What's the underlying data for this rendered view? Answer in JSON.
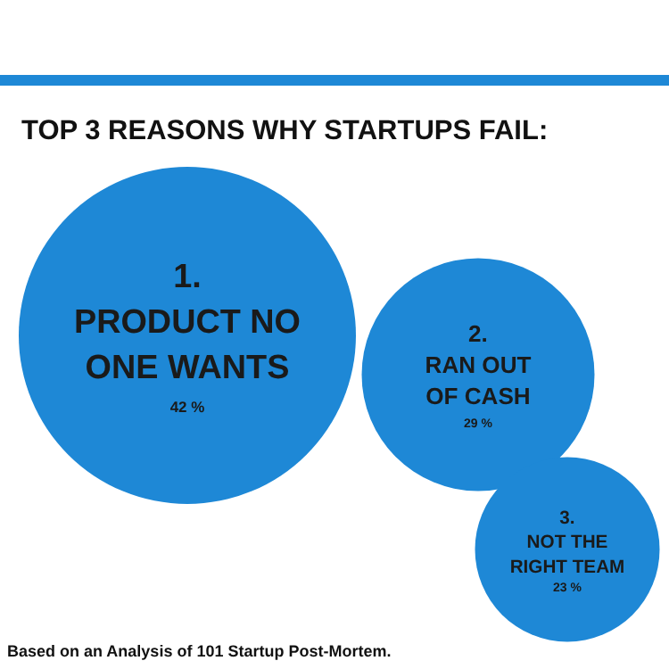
{
  "chart_data": {
    "type": "other",
    "title": "TOP 3 REASONS WHY STARTUPS FAIL:",
    "categories": [
      "1. PRODUCT NO ONE WANTS",
      "2. RAN OUT OF CASH",
      "3. NOT THE RIGHT TEAM"
    ],
    "values": [
      42,
      29,
      23
    ],
    "value_labels": [
      "42 %",
      "29 %",
      "23 %"
    ],
    "color": "#1e88d6",
    "annotations": [
      "Based on an Analysis of 101 Startup Post-Mortem."
    ]
  }
}
